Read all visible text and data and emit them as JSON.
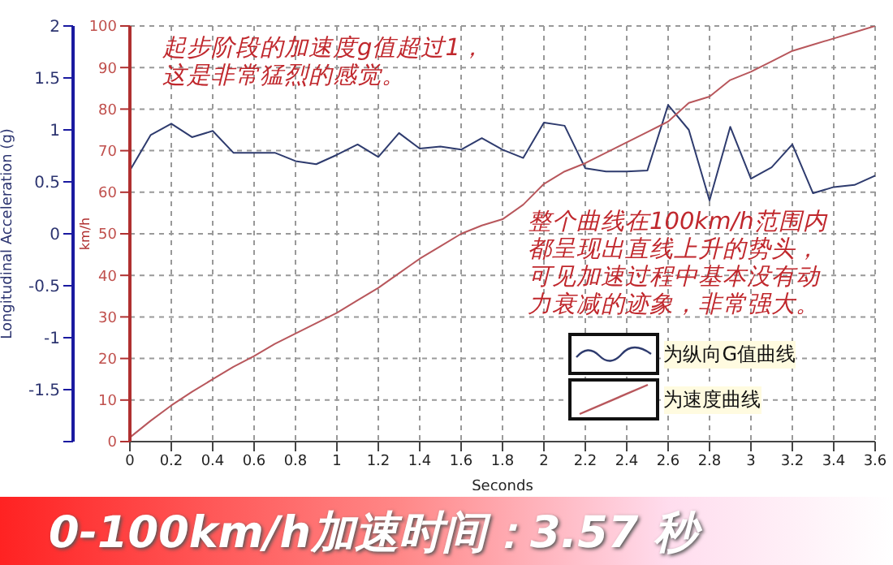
{
  "chart_data": {
    "type": "line",
    "title": "0-100km/h加速时间：3.57 秒",
    "xlabel": "Seconds",
    "ylabel": "Longitudinal Acceleration (g)",
    "y2label": "km/h",
    "annotations": [
      "起步阶段的加速度g值超过1，这是非常猛烈的感觉。",
      "整个曲线在100km/h范围内都呈现出直线上升的势头，可见加速过程中基本没有动力衰减的迹象，非常强大。"
    ],
    "x": [
      0,
      0.1,
      0.2,
      0.3,
      0.4,
      0.5,
      0.6,
      0.7,
      0.8,
      0.9,
      1.0,
      1.1,
      1.2,
      1.3,
      1.4,
      1.5,
      1.6,
      1.7,
      1.8,
      1.9,
      2.0,
      2.1,
      2.2,
      2.3,
      2.4,
      2.5,
      2.6,
      2.7,
      2.8,
      2.9,
      3.0,
      3.1,
      3.2,
      3.3,
      3.4,
      3.5,
      3.6
    ],
    "series": [
      {
        "name": "为纵向G值曲线",
        "color": "#2e3b6e",
        "values": [
          0.61,
          0.95,
          1.06,
          0.93,
          0.99,
          0.78,
          0.78,
          0.78,
          0.7,
          0.67,
          0.76,
          0.86,
          0.74,
          0.97,
          0.82,
          0.84,
          0.81,
          0.92,
          0.81,
          0.73,
          1.07,
          1.04,
          0.63,
          0.6,
          0.6,
          0.61,
          1.24,
          1.0,
          0.32,
          1.03,
          0.53,
          0.64,
          0.86,
          0.39,
          0.45,
          0.47,
          0.56
        ]
      },
      {
        "name": "为速度曲线",
        "color": "#b8575c",
        "axis": "y2",
        "values": [
          1,
          5,
          8.7,
          12,
          15,
          18,
          20.6,
          23.5,
          26,
          28.5,
          31,
          34,
          37,
          40.5,
          44,
          47,
          50,
          52,
          53.5,
          57,
          62,
          65,
          67,
          69.5,
          72,
          74.5,
          77,
          81.5,
          83,
          87,
          89,
          91.5,
          94,
          95.5,
          97,
          98.5,
          100
        ]
      }
    ],
    "xlim": [
      0,
      3.6
    ],
    "xticks": [
      0,
      0.2,
      0.4,
      0.6,
      0.8,
      1,
      1.2,
      1.4,
      1.6,
      1.8,
      2,
      2.2,
      2.4,
      2.6,
      2.8,
      3,
      3.2,
      3.4,
      3.6
    ],
    "ylim": [
      -2,
      2
    ],
    "yticks": [
      {
        "value": -2,
        "label": null
      },
      -1.5,
      -1,
      -0.5,
      0,
      0.5,
      1,
      1.5,
      2
    ],
    "y2lim": [
      0,
      100
    ],
    "y2ticks": [
      0,
      10,
      20,
      30,
      40,
      50,
      60,
      70,
      80,
      90,
      100
    ],
    "grid": true,
    "legend": "bottom right",
    "marker": "none"
  }
}
